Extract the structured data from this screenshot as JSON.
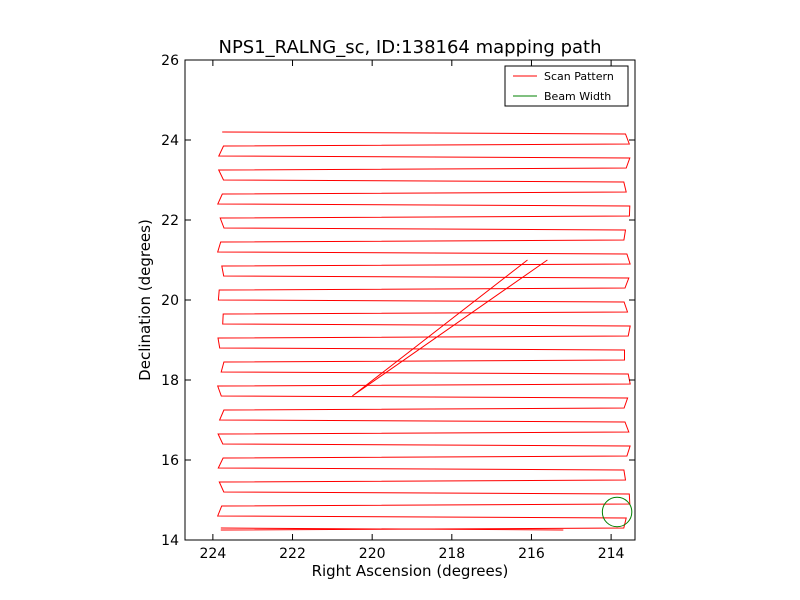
{
  "chart_data": {
    "type": "line",
    "title": "NPS1_RALNG_sc, ID:138164 mapping path",
    "xlabel": "Right Ascension (degrees)",
    "ylabel": "Declination (degrees)",
    "xlim": [
      224.7,
      213.4
    ],
    "ylim": [
      14,
      26
    ],
    "x_ticks": [
      224,
      222,
      220,
      218,
      216,
      214
    ],
    "y_ticks": [
      14,
      16,
      18,
      20,
      22,
      24,
      26
    ],
    "grid": false,
    "legend_position": "top-right",
    "legend": [
      {
        "label": "Scan Pattern",
        "color": "#ff0000"
      },
      {
        "label": "Beam Width",
        "color": "#008000"
      }
    ],
    "scan_pattern": {
      "color": "#ff0000",
      "ra_min": 223.8,
      "ra_max": 213.6,
      "dec_start": 14.25,
      "dec_end": 24.2,
      "row_spacing": 0.3,
      "diagonal": [
        [
          216.1,
          21.0
        ],
        [
          220.5,
          17.6
        ],
        [
          215.6,
          21.0
        ]
      ],
      "final_segment": [
        [
          223.8,
          14.3
        ],
        [
          215.2,
          14.25
        ]
      ]
    },
    "beam_width": {
      "color": "#008000",
      "center": [
        213.85,
        14.7
      ],
      "radius_deg": 0.37
    }
  }
}
